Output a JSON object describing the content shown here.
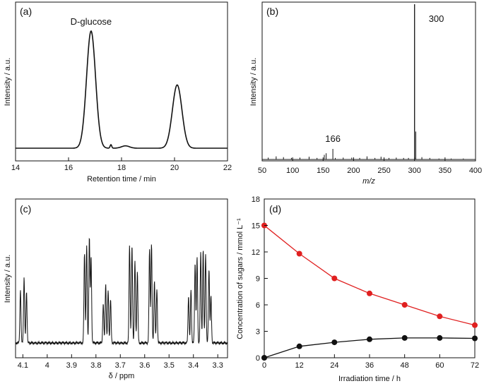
{
  "chart_data": [
    {
      "panel": "(a)",
      "type": "line",
      "xlabel": "Retention time / min",
      "ylabel": "Intensity / a.u.",
      "xlim": [
        14,
        22
      ],
      "x_ticks": [
        "14",
        "16",
        "18",
        "20",
        "22"
      ],
      "grid": false,
      "annotations": [
        {
          "text": "D-glucose",
          "x": 16.85
        }
      ],
      "peaks": [
        {
          "x": 16.85,
          "height": 1.0,
          "width": 0.17
        },
        {
          "x": 20.1,
          "height": 0.54,
          "width": 0.18
        },
        {
          "x": 17.6,
          "height": 0.03,
          "width": 0.03
        },
        {
          "x": 18.15,
          "height": 0.02,
          "width": 0.15
        }
      ]
    },
    {
      "panel": "(b)",
      "type": "bar",
      "xlabel": "m/z",
      "ylabel": "Intensity / a.u.",
      "xlim": [
        50,
        400
      ],
      "x_ticks": [
        "50",
        "100",
        "150",
        "200",
        "250",
        "300",
        "350",
        "400"
      ],
      "grid": false,
      "annotations": [
        {
          "text": "300",
          "x": 300
        },
        {
          "text": "166",
          "x": 166
        }
      ],
      "x": [
        60,
        73,
        85,
        98,
        112,
        127,
        140,
        152,
        155,
        166,
        170,
        183,
        197,
        210,
        222,
        235,
        245,
        258,
        270,
        282,
        290,
        300,
        302,
        312,
        325,
        340,
        360,
        380
      ],
      "values": [
        0.012,
        0.02,
        0.015,
        0.01,
        0.012,
        0.018,
        0.01,
        0.03,
        0.04,
        0.068,
        0.01,
        0.012,
        0.012,
        0.01,
        0.02,
        0.01,
        0.018,
        0.01,
        0.012,
        0.01,
        0.01,
        1.0,
        0.18,
        0.015,
        0.01,
        0.006,
        0.006,
        0.006
      ]
    },
    {
      "panel": "(c)",
      "type": "line",
      "xlabel": "δ / ppm",
      "ylabel": "Intensity / a.u.",
      "xlim": [
        4.13,
        3.26
      ],
      "x_ticks": [
        "4.1",
        "4",
        "3.9",
        "3.8",
        "3.7",
        "3.6",
        "3.5",
        "3.4",
        "3.3"
      ],
      "grid": false,
      "peaks": [
        {
          "x": 4.11,
          "height": 0.34
        },
        {
          "x": 4.095,
          "height": 0.42
        },
        {
          "x": 4.085,
          "height": 0.33
        },
        {
          "x": 3.847,
          "height": 0.58
        },
        {
          "x": 3.838,
          "height": 0.62
        },
        {
          "x": 3.827,
          "height": 0.68
        },
        {
          "x": 3.82,
          "height": 0.55
        },
        {
          "x": 3.77,
          "height": 0.25
        },
        {
          "x": 3.76,
          "height": 0.38
        },
        {
          "x": 3.75,
          "height": 0.34
        },
        {
          "x": 3.74,
          "height": 0.28
        },
        {
          "x": 3.662,
          "height": 0.63
        },
        {
          "x": 3.652,
          "height": 0.62
        },
        {
          "x": 3.64,
          "height": 0.53
        },
        {
          "x": 3.63,
          "height": 0.46
        },
        {
          "x": 3.58,
          "height": 0.6
        },
        {
          "x": 3.572,
          "height": 0.64
        },
        {
          "x": 3.56,
          "height": 0.4
        },
        {
          "x": 3.55,
          "height": 0.35
        },
        {
          "x": 3.42,
          "height": 0.3
        },
        {
          "x": 3.41,
          "height": 0.34
        },
        {
          "x": 3.393,
          "height": 0.52
        },
        {
          "x": 3.385,
          "height": 0.55
        },
        {
          "x": 3.37,
          "height": 0.58
        },
        {
          "x": 3.36,
          "height": 0.6
        },
        {
          "x": 3.35,
          "height": 0.58
        },
        {
          "x": 3.336,
          "height": 0.48
        },
        {
          "x": 3.328,
          "height": 0.3
        }
      ]
    },
    {
      "panel": "(d)",
      "type": "line",
      "xlabel": "Irradiation time / h",
      "ylabel": "Concentration of sugars / mmol L⁻¹",
      "xlim": [
        0,
        72
      ],
      "ylim": [
        0,
        18
      ],
      "x_ticks": [
        "0",
        "12",
        "24",
        "36",
        "48",
        "60",
        "72"
      ],
      "y_ticks": [
        "0",
        "3",
        "6",
        "9",
        "12",
        "15",
        "18"
      ],
      "grid": false,
      "x": [
        0,
        12,
        24,
        36,
        48,
        60,
        72
      ],
      "series": [
        {
          "color": "#e02020",
          "values": [
            15.0,
            11.8,
            9.0,
            7.3,
            6.0,
            4.7,
            3.7
          ]
        },
        {
          "color": "#111111",
          "values": [
            0.0,
            1.3,
            1.75,
            2.1,
            2.25,
            2.25,
            2.2
          ]
        }
      ]
    }
  ]
}
